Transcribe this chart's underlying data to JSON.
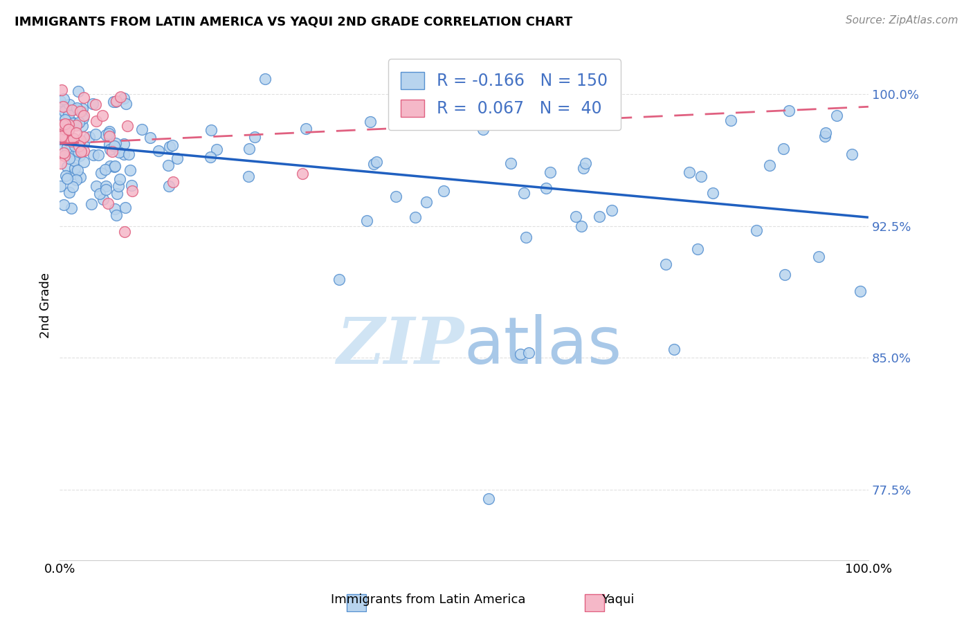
{
  "title": "IMMIGRANTS FROM LATIN AMERICA VS YAQUI 2ND GRADE CORRELATION CHART",
  "source": "Source: ZipAtlas.com",
  "ylabel": "2nd Grade",
  "xlim": [
    0.0,
    1.0
  ],
  "ylim": [
    0.735,
    1.025
  ],
  "yticks": [
    0.775,
    0.85,
    0.925,
    1.0
  ],
  "ytick_labels": [
    "77.5%",
    "85.0%",
    "92.5%",
    "100.0%"
  ],
  "xticks": [
    0.0,
    0.25,
    0.5,
    0.75,
    1.0
  ],
  "xtick_labels": [
    "0.0%",
    "",
    "",
    "",
    "100.0%"
  ],
  "legend_R1": "-0.166",
  "legend_N1": "150",
  "legend_R2": "0.067",
  "legend_N2": "40",
  "blue_fill": "#b8d4ee",
  "blue_edge": "#5590d0",
  "pink_fill": "#f5b8c8",
  "pink_edge": "#e06080",
  "blue_line": "#2060c0",
  "pink_line": "#e06080",
  "watermark_color": "#d0e4f4",
  "background_color": "#ffffff",
  "tick_color": "#4472c4",
  "grid_color": "#e0e0e0",
  "blue_trend_x": [
    0.0,
    1.0
  ],
  "blue_trend_y": [
    0.972,
    0.93
  ],
  "pink_trend_x": [
    0.0,
    1.0
  ],
  "pink_trend_y": [
    0.972,
    0.993
  ]
}
